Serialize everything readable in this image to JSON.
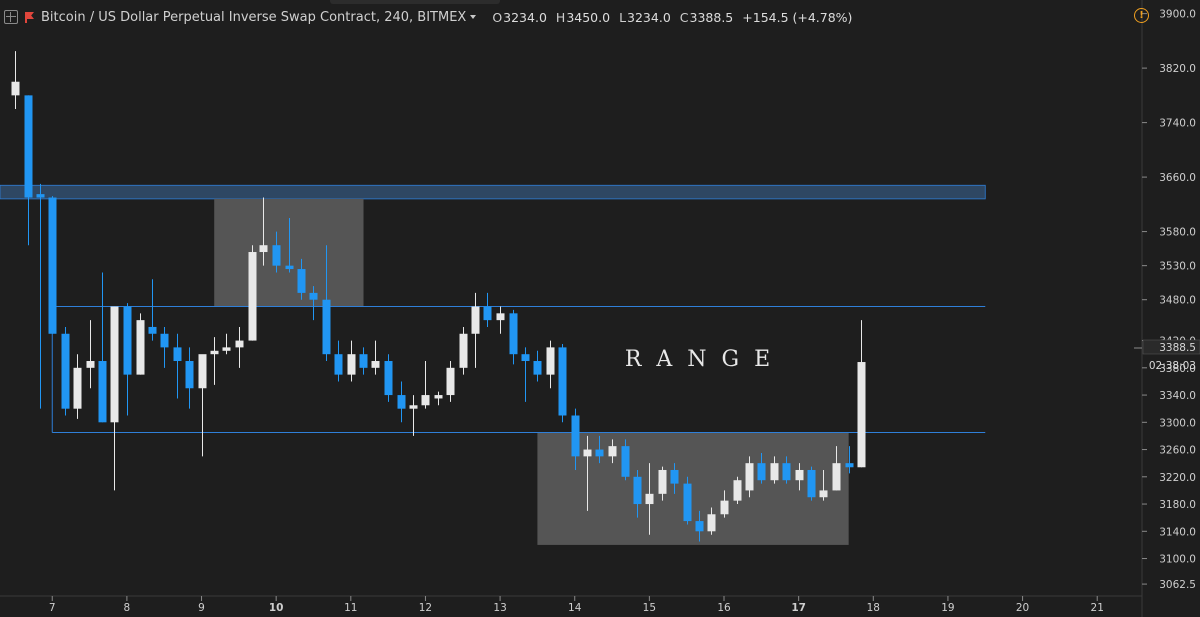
{
  "header": {
    "title": "Bitcoin / US Dollar Perpetual Inverse Swap Contract, 240, BITMEX",
    "ohlc": {
      "o_label": "O",
      "o": "3234.0",
      "h_label": "H",
      "h": "3450.0",
      "l_label": "L",
      "l": "3234.0",
      "c_label": "C",
      "c": "3388.5",
      "change": "+154.5 (+4.78%)"
    }
  },
  "price_axis": {
    "ticks": [
      3900.0,
      3820.0,
      3740.0,
      3660.0,
      3580.0,
      3530.0,
      3480.0,
      3420.0,
      3380.0,
      3340.0,
      3300.0,
      3260.0,
      3220.0,
      3180.0,
      3140.0,
      3100.0,
      3062.5
    ],
    "tick_labels": [
      "3900.0",
      "3820.0",
      "3740.0",
      "3660.0",
      "3580.0",
      "3530.0",
      "3480.0",
      "3420.0",
      "3380.0",
      "3340.0",
      "3300.0",
      "3260.0",
      "3220.0",
      "3180.0",
      "3140.0",
      "3100.0",
      "3062.5"
    ],
    "last_price_label": "3388.5",
    "countdown_label": "02:38:03"
  },
  "time_axis": {
    "labels": [
      "7",
      "8",
      "9",
      "10",
      "11",
      "12",
      "13",
      "14",
      "15",
      "16",
      "17",
      "18",
      "19",
      "20",
      "21"
    ],
    "bold_labels": [
      "10",
      "17"
    ]
  },
  "annotation": {
    "range_text": "RANGE"
  },
  "colors": {
    "background": "#1e1e1e",
    "up": "#e8e8e8",
    "down": "#2196f3",
    "resistance_zone": "#2e4763",
    "consolidation_box": "#555555",
    "range_line": "#2f7fd8"
  },
  "chart_data": {
    "type": "candlestick",
    "title": "Bitcoin / US Dollar Perpetual Inverse Swap Contract, 240, BITMEX",
    "interval": "240",
    "x_unit": "day",
    "x_range": [
      6.3,
      21.6
    ],
    "y_range": [
      3045,
      3920
    ],
    "candles": [
      {
        "t": 6.5,
        "o": 3780,
        "h": 3845,
        "l": 3760,
        "c": 3800
      },
      {
        "t": 6.67,
        "o": 3780,
        "h": 3780,
        "l": 3560,
        "c": 3630
      },
      {
        "t": 6.83,
        "o": 3635,
        "h": 3650,
        "l": 3320,
        "c": 3630
      },
      {
        "t": 7.0,
        "o": 3630,
        "h": 3632,
        "l": 3430,
        "c": 3430
      },
      {
        "t": 7.17,
        "o": 3430,
        "h": 3440,
        "l": 3310,
        "c": 3320
      },
      {
        "t": 7.33,
        "o": 3320,
        "h": 3400,
        "l": 3305,
        "c": 3380
      },
      {
        "t": 7.5,
        "o": 3380,
        "h": 3450,
        "l": 3350,
        "c": 3390
      },
      {
        "t": 7.67,
        "o": 3390,
        "h": 3520,
        "l": 3300,
        "c": 3300
      },
      {
        "t": 7.83,
        "o": 3300,
        "h": 3470,
        "l": 3200,
        "c": 3470
      },
      {
        "t": 8.0,
        "o": 3470,
        "h": 3475,
        "l": 3310,
        "c": 3370
      },
      {
        "t": 8.17,
        "o": 3370,
        "h": 3460,
        "l": 3370,
        "c": 3450
      },
      {
        "t": 8.33,
        "o": 3440,
        "h": 3510,
        "l": 3420,
        "c": 3430
      },
      {
        "t": 8.5,
        "o": 3430,
        "h": 3440,
        "l": 3380,
        "c": 3410
      },
      {
        "t": 8.67,
        "o": 3410,
        "h": 3430,
        "l": 3335,
        "c": 3390
      },
      {
        "t": 8.83,
        "o": 3390,
        "h": 3410,
        "l": 3320,
        "c": 3350
      },
      {
        "t": 9.0,
        "o": 3350,
        "h": 3395,
        "l": 3250,
        "c": 3400
      },
      {
        "t": 9.17,
        "o": 3400,
        "h": 3425,
        "l": 3355,
        "c": 3405
      },
      {
        "t": 9.33,
        "o": 3405,
        "h": 3430,
        "l": 3400,
        "c": 3410
      },
      {
        "t": 9.5,
        "o": 3410,
        "h": 3440,
        "l": 3380,
        "c": 3420
      },
      {
        "t": 9.67,
        "o": 3420,
        "h": 3560,
        "l": 3420,
        "c": 3550
      },
      {
        "t": 9.83,
        "o": 3550,
        "h": 3630,
        "l": 3530,
        "c": 3560
      },
      {
        "t": 10.0,
        "o": 3560,
        "h": 3580,
        "l": 3520,
        "c": 3530
      },
      {
        "t": 10.17,
        "o": 3530,
        "h": 3600,
        "l": 3520,
        "c": 3525
      },
      {
        "t": 10.33,
        "o": 3525,
        "h": 3540,
        "l": 3480,
        "c": 3490
      },
      {
        "t": 10.5,
        "o": 3490,
        "h": 3500,
        "l": 3450,
        "c": 3480
      },
      {
        "t": 10.67,
        "o": 3480,
        "h": 3560,
        "l": 3390,
        "c": 3400
      },
      {
        "t": 10.83,
        "o": 3400,
        "h": 3420,
        "l": 3360,
        "c": 3370
      },
      {
        "t": 11.0,
        "o": 3370,
        "h": 3420,
        "l": 3360,
        "c": 3400
      },
      {
        "t": 11.17,
        "o": 3400,
        "h": 3410,
        "l": 3370,
        "c": 3380
      },
      {
        "t": 11.33,
        "o": 3380,
        "h": 3420,
        "l": 3370,
        "c": 3390
      },
      {
        "t": 11.5,
        "o": 3390,
        "h": 3400,
        "l": 3330,
        "c": 3340
      },
      {
        "t": 11.67,
        "o": 3340,
        "h": 3360,
        "l": 3300,
        "c": 3320
      },
      {
        "t": 11.83,
        "o": 3320,
        "h": 3340,
        "l": 3280,
        "c": 3325
      },
      {
        "t": 12.0,
        "o": 3325,
        "h": 3390,
        "l": 3320,
        "c": 3340
      },
      {
        "t": 12.17,
        "o": 3335,
        "h": 3345,
        "l": 3325,
        "c": 3340
      },
      {
        "t": 12.33,
        "o": 3340,
        "h": 3390,
        "l": 3330,
        "c": 3380
      },
      {
        "t": 12.5,
        "o": 3380,
        "h": 3440,
        "l": 3370,
        "c": 3430
      },
      {
        "t": 12.67,
        "o": 3430,
        "h": 3490,
        "l": 3380,
        "c": 3470
      },
      {
        "t": 12.83,
        "o": 3470,
        "h": 3490,
        "l": 3440,
        "c": 3450
      },
      {
        "t": 13.0,
        "o": 3450,
        "h": 3470,
        "l": 3430,
        "c": 3460
      },
      {
        "t": 13.17,
        "o": 3460,
        "h": 3465,
        "l": 3385,
        "c": 3400
      },
      {
        "t": 13.33,
        "o": 3400,
        "h": 3410,
        "l": 3330,
        "c": 3390
      },
      {
        "t": 13.5,
        "o": 3390,
        "h": 3405,
        "l": 3360,
        "c": 3370
      },
      {
        "t": 13.67,
        "o": 3370,
        "h": 3420,
        "l": 3350,
        "c": 3410
      },
      {
        "t": 13.83,
        "o": 3410,
        "h": 3415,
        "l": 3300,
        "c": 3310
      },
      {
        "t": 14.0,
        "o": 3310,
        "h": 3320,
        "l": 3230,
        "c": 3250
      },
      {
        "t": 14.17,
        "o": 3250,
        "h": 3280,
        "l": 3170,
        "c": 3260
      },
      {
        "t": 14.33,
        "o": 3260,
        "h": 3280,
        "l": 3240,
        "c": 3250
      },
      {
        "t": 14.5,
        "o": 3250,
        "h": 3275,
        "l": 3240,
        "c": 3265
      },
      {
        "t": 14.67,
        "o": 3265,
        "h": 3275,
        "l": 3215,
        "c": 3220
      },
      {
        "t": 14.83,
        "o": 3220,
        "h": 3230,
        "l": 3160,
        "c": 3180
      },
      {
        "t": 15.0,
        "o": 3180,
        "h": 3240,
        "l": 3135,
        "c": 3195
      },
      {
        "t": 15.17,
        "o": 3195,
        "h": 3235,
        "l": 3185,
        "c": 3230
      },
      {
        "t": 15.33,
        "o": 3230,
        "h": 3240,
        "l": 3195,
        "c": 3210
      },
      {
        "t": 15.5,
        "o": 3210,
        "h": 3220,
        "l": 3150,
        "c": 3155
      },
      {
        "t": 15.67,
        "o": 3155,
        "h": 3170,
        "l": 3125,
        "c": 3140
      },
      {
        "t": 15.83,
        "o": 3140,
        "h": 3175,
        "l": 3135,
        "c": 3165
      },
      {
        "t": 16.0,
        "o": 3165,
        "h": 3200,
        "l": 3160,
        "c": 3185
      },
      {
        "t": 16.17,
        "o": 3185,
        "h": 3220,
        "l": 3180,
        "c": 3215
      },
      {
        "t": 16.33,
        "o": 3200,
        "h": 3250,
        "l": 3190,
        "c": 3240
      },
      {
        "t": 16.5,
        "o": 3240,
        "h": 3255,
        "l": 3210,
        "c": 3215
      },
      {
        "t": 16.67,
        "o": 3215,
        "h": 3250,
        "l": 3210,
        "c": 3240
      },
      {
        "t": 16.83,
        "o": 3240,
        "h": 3250,
        "l": 3210,
        "c": 3215
      },
      {
        "t": 17.0,
        "o": 3215,
        "h": 3240,
        "l": 3200,
        "c": 3230
      },
      {
        "t": 17.17,
        "o": 3230,
        "h": 3235,
        "l": 3185,
        "c": 3190
      },
      {
        "t": 17.33,
        "o": 3190,
        "h": 3230,
        "l": 3185,
        "c": 3200
      },
      {
        "t": 17.5,
        "o": 3200,
        "h": 3265,
        "l": 3200,
        "c": 3240
      },
      {
        "t": 17.67,
        "o": 3240,
        "h": 3265,
        "l": 3225,
        "c": 3234
      },
      {
        "t": 17.83,
        "o": 3234,
        "h": 3450,
        "l": 3234,
        "c": 3388.5
      }
    ],
    "zones": [
      {
        "name": "resistance",
        "y_from": 3628,
        "y_to": 3648,
        "x_from": 6.3,
        "x_to": 19.5
      },
      {
        "name": "consolidation-top",
        "y_from": 3470,
        "y_to": 3628,
        "x_from": 9.17,
        "x_to": 11.17
      },
      {
        "name": "consolidation-bottom",
        "y_from": 3120,
        "y_to": 3285,
        "x_from": 13.5,
        "x_to": 17.67
      }
    ],
    "range_lines": [
      {
        "y": 3470,
        "x_from": 7.0,
        "x_to": 19.5
      },
      {
        "y": 3285,
        "x_from": 7.0,
        "x_to": 19.5
      }
    ]
  }
}
